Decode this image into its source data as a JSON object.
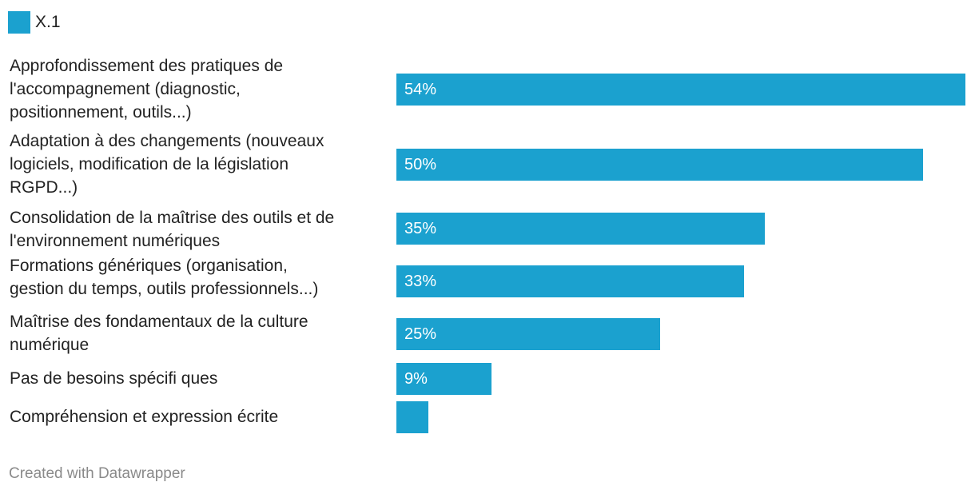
{
  "legend": {
    "label": "X.1"
  },
  "colors": {
    "bar": "#1ba1cf"
  },
  "chart_data": {
    "type": "bar",
    "orientation": "horizontal",
    "categories": [
      "Approfondissement des pratiques de l'accompagnement (diagnostic, positionnement, outils...)",
      "Adaptation à des changements (nouveaux logiciels, modification de la législation RGPD...)",
      "Consolidation de la maîtrise des outils et de l'environnement numériques",
      "Formations génériques (organisation, gestion du temps, outils professionnels...)",
      "Maîtrise des fondamentaux de la culture numérique",
      "Pas de besoins spécifi ques",
      "Compréhension et expression écrite"
    ],
    "series": [
      {
        "name": "X.1",
        "values": [
          54,
          50,
          35,
          33,
          25,
          9,
          3
        ],
        "labels": [
          "54%",
          "50%",
          "35%",
          "33%",
          "25%",
          "9%",
          ""
        ]
      }
    ],
    "xlim": [
      0,
      54
    ],
    "unit": "%",
    "legend_position": "top-left"
  },
  "footer": {
    "credit": "Created with Datawrapper"
  }
}
